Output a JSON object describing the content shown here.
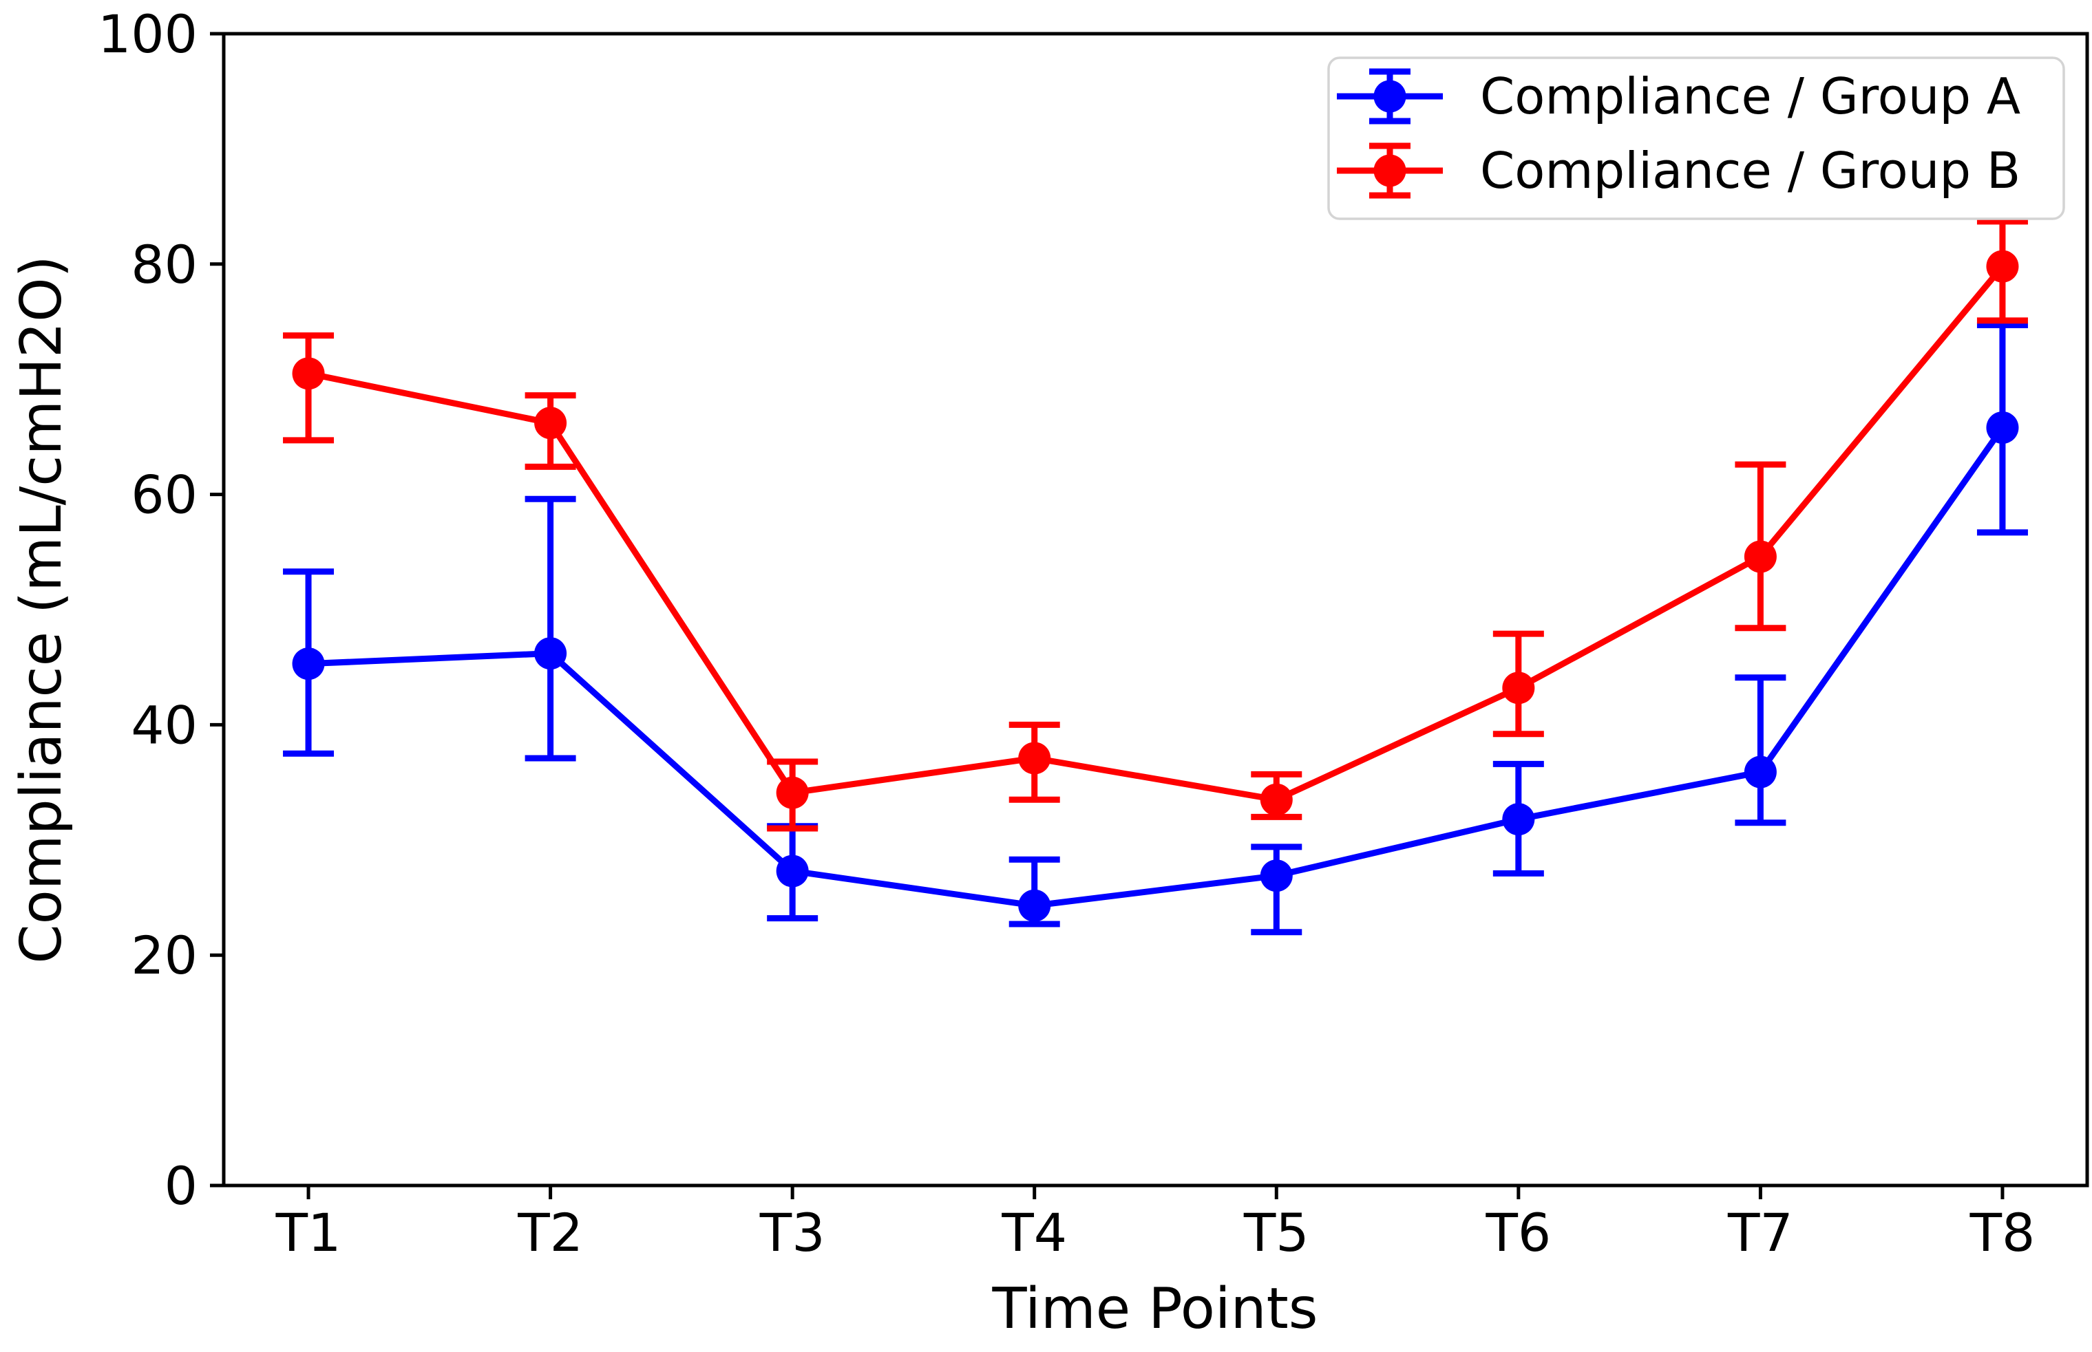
{
  "chart_data": {
    "type": "line",
    "title": "",
    "xlabel": "Time Points",
    "ylabel": "Compliance (mL/cmH2O)",
    "categories": [
      "T1",
      "T2",
      "T3",
      "T4",
      "T5",
      "T6",
      "T7",
      "T8"
    ],
    "ylim": [
      0,
      100
    ],
    "yticks": [
      0,
      20,
      40,
      60,
      80,
      100
    ],
    "grid": false,
    "legend_position": "upper right",
    "background_color": "#ffffff",
    "axis_color": "#000000",
    "legend_border_color": "#d4d4d4",
    "series": [
      {
        "name": "Compliance / Group A",
        "color": "#0000ff",
        "values": [
          45.3,
          46.2,
          27.3,
          24.3,
          26.9,
          31.8,
          35.9,
          65.8
        ],
        "err_plus": [
          8.0,
          13.4,
          3.9,
          4.0,
          2.5,
          4.8,
          8.2,
          8.9
        ],
        "err_minus": [
          7.8,
          9.1,
          4.1,
          1.6,
          4.9,
          4.7,
          4.4,
          9.1
        ]
      },
      {
        "name": "Compliance / Group B",
        "color": "#ff0000",
        "values": [
          70.5,
          66.2,
          34.1,
          37.1,
          33.5,
          43.2,
          54.6,
          79.8
        ],
        "err_plus": [
          3.3,
          2.4,
          2.7,
          2.9,
          2.2,
          4.7,
          8.0,
          3.9
        ],
        "err_minus": [
          5.8,
          3.8,
          3.1,
          3.6,
          1.5,
          4.0,
          6.2,
          4.7
        ]
      }
    ]
  }
}
